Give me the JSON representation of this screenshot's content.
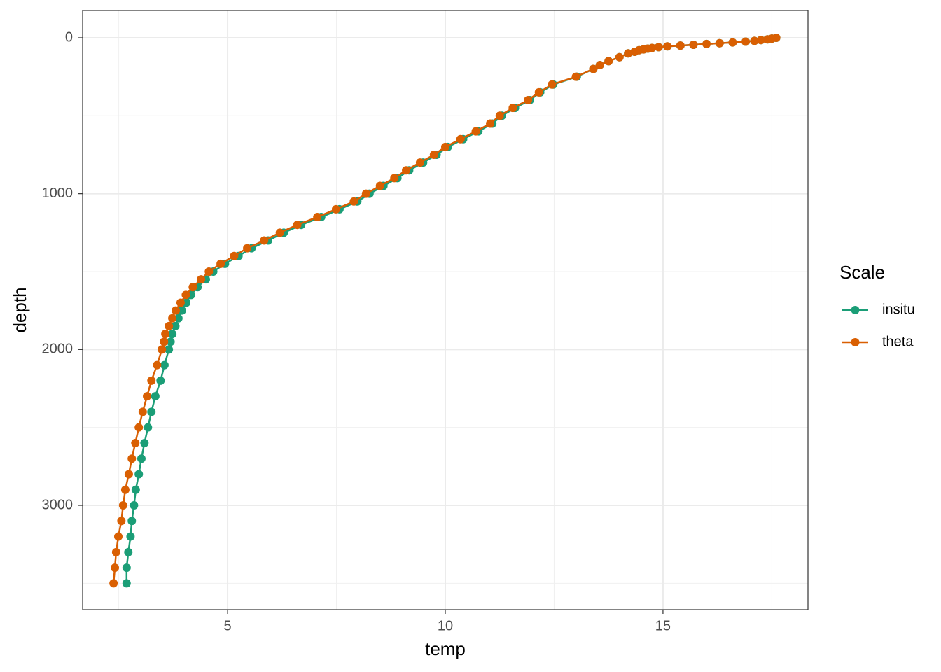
{
  "chart_data": {
    "type": "line",
    "x_label": "temp",
    "y_label": "depth",
    "legend_title": "Scale",
    "legend_position": "right",
    "grid": true,
    "minor_grid": true,
    "y_reversed": true,
    "xlim": [
      1.67,
      18.33
    ],
    "ylim": [
      -175,
      3669
    ],
    "xticks": [
      5,
      10,
      15
    ],
    "yticks": [
      0,
      1000,
      2000,
      3000
    ],
    "y": [
      0,
      5,
      10,
      15,
      20,
      25,
      30,
      35,
      40,
      45,
      50,
      55,
      60,
      65,
      70,
      75,
      80,
      90,
      100,
      125,
      150,
      175,
      200,
      250,
      300,
      350,
      400,
      450,
      500,
      550,
      600,
      650,
      700,
      750,
      800,
      850,
      900,
      950,
      1000,
      1050,
      1100,
      1150,
      1200,
      1250,
      1300,
      1350,
      1400,
      1450,
      1500,
      1550,
      1600,
      1650,
      1700,
      1750,
      1800,
      1850,
      1900,
      1950,
      2000,
      2100,
      2200,
      2300,
      2400,
      2500,
      2600,
      2700,
      2800,
      2900,
      3000,
      3100,
      3200,
      3300,
      3400,
      3500
    ],
    "series": [
      {
        "name": "insitu",
        "color": "#1b9e77",
        "x": [
          17.6,
          17.5,
          17.4,
          17.25,
          17.1,
          16.9,
          16.6,
          16.3,
          16.0,
          15.7,
          15.4,
          15.1,
          14.9,
          14.75,
          14.65,
          14.55,
          14.45,
          14.35,
          14.2,
          14.0,
          13.75,
          13.55,
          13.4,
          13.02,
          12.48,
          12.18,
          11.94,
          11.6,
          11.3,
          11.08,
          10.76,
          10.41,
          10.06,
          9.8,
          9.49,
          9.17,
          8.9,
          8.58,
          8.26,
          7.98,
          7.57,
          7.15,
          6.69,
          6.29,
          5.93,
          5.55,
          5.25,
          4.94,
          4.67,
          4.5,
          4.31,
          4.16,
          4.05,
          3.95,
          3.87,
          3.8,
          3.73,
          3.69,
          3.65,
          3.55,
          3.46,
          3.34,
          3.25,
          3.17,
          3.09,
          3.02,
          2.96,
          2.89,
          2.85,
          2.8,
          2.77,
          2.72,
          2.68,
          2.68
        ]
      },
      {
        "name": "theta",
        "color": "#d95f02",
        "x": [
          17.6,
          17.5,
          17.4,
          17.25,
          17.1,
          16.9,
          16.6,
          16.3,
          16.0,
          15.7,
          15.4,
          15.1,
          14.9,
          14.75,
          14.65,
          14.55,
          14.45,
          14.35,
          14.2,
          14.0,
          13.75,
          13.55,
          13.4,
          13.0,
          12.45,
          12.15,
          11.9,
          11.55,
          11.25,
          11.03,
          10.7,
          10.35,
          10.0,
          9.74,
          9.42,
          9.1,
          8.83,
          8.5,
          8.18,
          7.9,
          7.49,
          7.06,
          6.6,
          6.2,
          5.84,
          5.45,
          5.15,
          4.84,
          4.57,
          4.39,
          4.2,
          4.04,
          3.92,
          3.81,
          3.73,
          3.65,
          3.57,
          3.54,
          3.49,
          3.38,
          3.25,
          3.15,
          3.05,
          2.96,
          2.88,
          2.8,
          2.73,
          2.65,
          2.6,
          2.56,
          2.49,
          2.44,
          2.41,
          2.38
        ]
      }
    ]
  }
}
